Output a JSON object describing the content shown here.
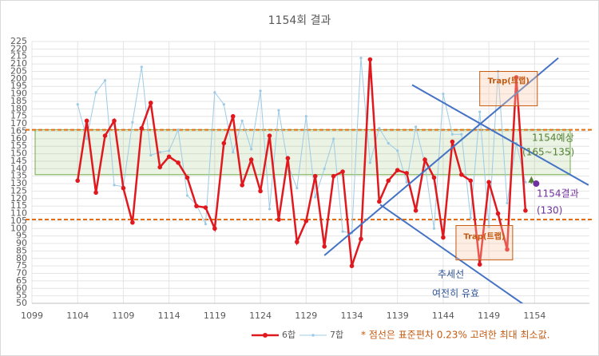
{
  "chart_data": {
    "type": "line",
    "title": "1154회 결과",
    "x": [
      1104,
      1105,
      1106,
      1107,
      1108,
      1109,
      1110,
      1111,
      1112,
      1113,
      1114,
      1115,
      1116,
      1117,
      1118,
      1119,
      1120,
      1121,
      1122,
      1123,
      1124,
      1125,
      1126,
      1127,
      1128,
      1129,
      1130,
      1131,
      1132,
      1133,
      1134,
      1135,
      1136,
      1137,
      1138,
      1139,
      1140,
      1141,
      1142,
      1143,
      1144,
      1145,
      1146,
      1147,
      1148,
      1149,
      1150,
      1151,
      1152,
      1153
    ],
    "series": [
      {
        "name": "6합",
        "color": "#e0191f",
        "values": [
          132,
          172,
          124,
          162,
          172,
          127,
          104,
          167,
          184,
          141,
          148,
          144,
          134,
          115,
          114,
          100,
          157,
          175,
          129,
          146,
          125,
          162,
          106,
          147,
          91,
          105,
          135,
          88,
          135,
          138,
          75,
          93,
          213,
          118,
          132,
          139,
          137,
          112,
          146,
          134,
          94,
          158,
          136,
          132,
          76,
          131,
          110,
          86,
          201,
          112
        ]
      },
      {
        "name": "7합",
        "color": "#9dcbe6",
        "values": [
          183,
          160,
          191,
          199,
          129,
          128,
          171,
          208,
          149,
          151,
          152,
          166,
          122,
          116,
          103,
          191,
          183,
          151,
          172,
          153,
          192,
          113,
          179,
          143,
          127,
          175,
          121,
          140,
          160,
          98,
          97,
          214,
          144,
          167,
          157,
          152,
          131,
          168,
          143,
          100,
          190,
          163,
          163,
          107,
          178,
          101,
          205,
          117,
          157,
          131
        ]
      }
    ],
    "xlim": [
      1099,
      1160
    ],
    "ylim": [
      50,
      225
    ],
    "xticks": [
      1099,
      1104,
      1109,
      1114,
      1119,
      1124,
      1129,
      1134,
      1139,
      1144,
      1149,
      1154
    ],
    "yticks": [
      50,
      55,
      60,
      65,
      70,
      75,
      80,
      85,
      90,
      95,
      100,
      105,
      110,
      115,
      120,
      125,
      130,
      135,
      140,
      145,
      150,
      155,
      160,
      165,
      170,
      175,
      180,
      185,
      190,
      195,
      200,
      205,
      210,
      215,
      220,
      225
    ],
    "grid": true,
    "band": {
      "from": 136,
      "to": 166,
      "color": "#70ad47"
    },
    "limit_lines": {
      "values": [
        166,
        106
      ],
      "color": "#e46c0a"
    },
    "trend_lines": [
      {
        "x": [
          1131.0,
          1156.6
        ],
        "y": [
          82,
          214
        ]
      },
      {
        "x": [
          1140.6,
          1159.9
        ],
        "y": [
          196,
          129
        ]
      },
      {
        "x": [
          1137.1,
          1156.4
        ],
        "y": [
          116,
          34
        ]
      }
    ],
    "traps": [
      {
        "label": "Trap(트랩)",
        "x": [
          1148.0,
          1154.3
        ],
        "y": [
          182,
          205
        ]
      },
      {
        "label": "Trap(트랩)",
        "x": [
          1145.4,
          1151.6
        ],
        "y": [
          79,
          102
        ]
      }
    ],
    "prediction": {
      "x": 1154,
      "value": 130,
      "color": "#7030a0"
    },
    "annotations": [
      {
        "text": "1154예상",
        "color": "#548235"
      },
      {
        "text": "(165~135)",
        "color": "#548235"
      },
      {
        "text": "1154결과",
        "color": "#7030a0"
      },
      {
        "text": "(130)",
        "color": "#7030a0"
      },
      {
        "text": "추세선",
        "color": "#2f5597"
      },
      {
        "text": "여전히 유효",
        "color": "#2f5597"
      }
    ],
    "footnote": "* 점선은 표준편차 0.23% 고려한 최대 최소값."
  }
}
